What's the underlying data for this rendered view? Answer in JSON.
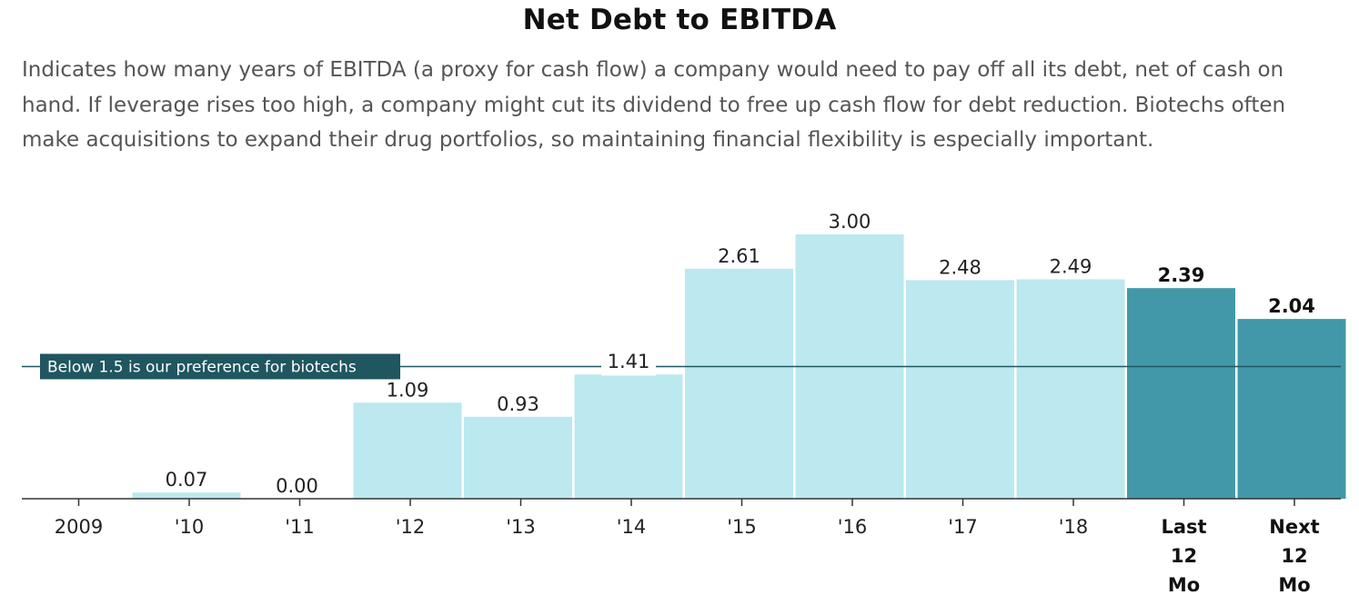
{
  "title": "Net Debt to EBITDA",
  "subtitle": "Indicates how many years of EBITDA (a proxy for cash flow) a company would need to pay off all its debt, net of cash on hand. If leverage rises too high, a company might cut its dividend to free up cash flow for debt reduction. Biotechs often make acquisitions to expand their drug portfolios, so maintaining financial flexibility is especially important.",
  "colors": {
    "bar": "#bce8ef",
    "highlight": "#4298a8",
    "reference": "#1f5660",
    "axis": "#333333"
  },
  "chart_data": {
    "type": "bar",
    "title": "Net Debt to EBITDA",
    "categories": [
      "2009",
      "'10",
      "'11",
      "'12",
      "'13",
      "'14",
      "'15",
      "'16",
      "'17",
      "'18",
      "Last 12 Mo",
      "Next 12 Mo"
    ],
    "category_lines": [
      [
        "2009"
      ],
      [
        "'10"
      ],
      [
        "'11"
      ],
      [
        "'12"
      ],
      [
        "'13"
      ],
      [
        "'14"
      ],
      [
        "'15"
      ],
      [
        "'16"
      ],
      [
        "'17"
      ],
      [
        "'18"
      ],
      [
        "Last",
        "12",
        "Mo"
      ],
      [
        "Next",
        "12",
        "Mo"
      ]
    ],
    "values": [
      null,
      0.07,
      0.0,
      1.09,
      0.93,
      1.41,
      2.61,
      3.0,
      2.48,
      2.49,
      2.39,
      2.04
    ],
    "value_labels": [
      "",
      "0.07",
      "0.00",
      "1.09",
      "0.93",
      "1.41",
      "2.61",
      "3.00",
      "2.48",
      "2.49",
      "2.39",
      "2.04"
    ],
    "highlighted": [
      false,
      false,
      false,
      false,
      false,
      false,
      false,
      false,
      false,
      false,
      true,
      true
    ],
    "reference_line": {
      "value": 1.5,
      "label": "Below 1.5 is our preference for biotechs"
    },
    "ylim": [
      0,
      3.0
    ],
    "xlabel": "",
    "ylabel": "",
    "grid": false,
    "legend": "none"
  }
}
